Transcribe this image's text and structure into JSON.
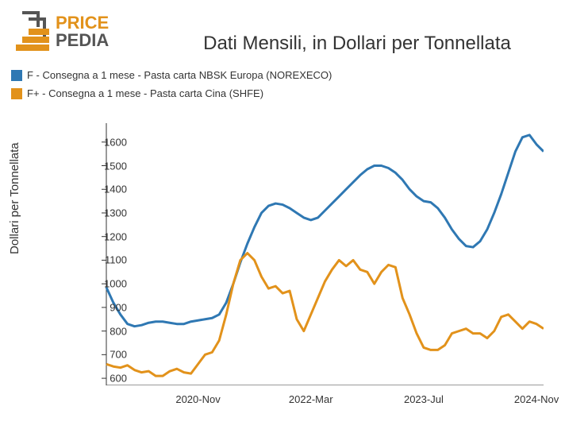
{
  "logo": {
    "text_top": "PRICE",
    "text_bottom": "PEDIA",
    "color_orange": "#e2921b",
    "color_gray": "#555555"
  },
  "chart": {
    "type": "line",
    "title": "Dati Mensili, in Dollari per Tonnellata",
    "title_fontsize": 24,
    "ylabel": "Dollari per Tonnellata",
    "label_fontsize": 15,
    "background_color": "#ffffff",
    "axis_color": "#333333",
    "line_width": 3,
    "ylim": [
      570,
      1680
    ],
    "yticks": [
      600,
      700,
      800,
      900,
      1000,
      1100,
      1200,
      1300,
      1400,
      1500,
      1600
    ],
    "xlim": [
      0,
      62
    ],
    "xticks": [
      {
        "pos": 13,
        "label": "2020-Nov"
      },
      {
        "pos": 29,
        "label": "2022-Mar"
      },
      {
        "pos": 45,
        "label": "2023-Jul"
      },
      {
        "pos": 61,
        "label": "2024-Nov"
      }
    ],
    "legend": [
      {
        "label": "F - Consegna a 1 mese - Pasta carta NBSK Europa (NOREXECO)",
        "color": "#2f78b3"
      },
      {
        "label": "F+ - Consegna a 1 mese - Pasta carta Cina (SHFE)",
        "color": "#e2921b"
      }
    ],
    "series": [
      {
        "name": "NBSK Europa",
        "color": "#2f78b3",
        "values": [
          985,
          920,
          870,
          830,
          820,
          825,
          835,
          840,
          840,
          835,
          830,
          830,
          840,
          845,
          850,
          855,
          870,
          920,
          1000,
          1090,
          1170,
          1240,
          1300,
          1330,
          1340,
          1335,
          1320,
          1300,
          1280,
          1270,
          1280,
          1310,
          1340,
          1370,
          1400,
          1430,
          1460,
          1485,
          1500,
          1500,
          1490,
          1470,
          1440,
          1400,
          1370,
          1350,
          1345,
          1320,
          1280,
          1230,
          1190,
          1160,
          1155,
          1180,
          1230,
          1300,
          1380,
          1470,
          1560,
          1620,
          1630,
          1590,
          1560
        ]
      },
      {
        "name": "Cina SHFE",
        "color": "#e2921b",
        "values": [
          660,
          650,
          645,
          655,
          635,
          625,
          630,
          610,
          610,
          630,
          640,
          625,
          620,
          660,
          700,
          710,
          760,
          870,
          1000,
          1100,
          1130,
          1100,
          1030,
          980,
          990,
          960,
          970,
          850,
          800,
          870,
          940,
          1010,
          1060,
          1100,
          1075,
          1100,
          1060,
          1050,
          1000,
          1050,
          1080,
          1070,
          940,
          870,
          790,
          730,
          720,
          720,
          740,
          790,
          800,
          810,
          790,
          790,
          770,
          800,
          860,
          870,
          840,
          810,
          840,
          830,
          810
        ]
      }
    ]
  }
}
